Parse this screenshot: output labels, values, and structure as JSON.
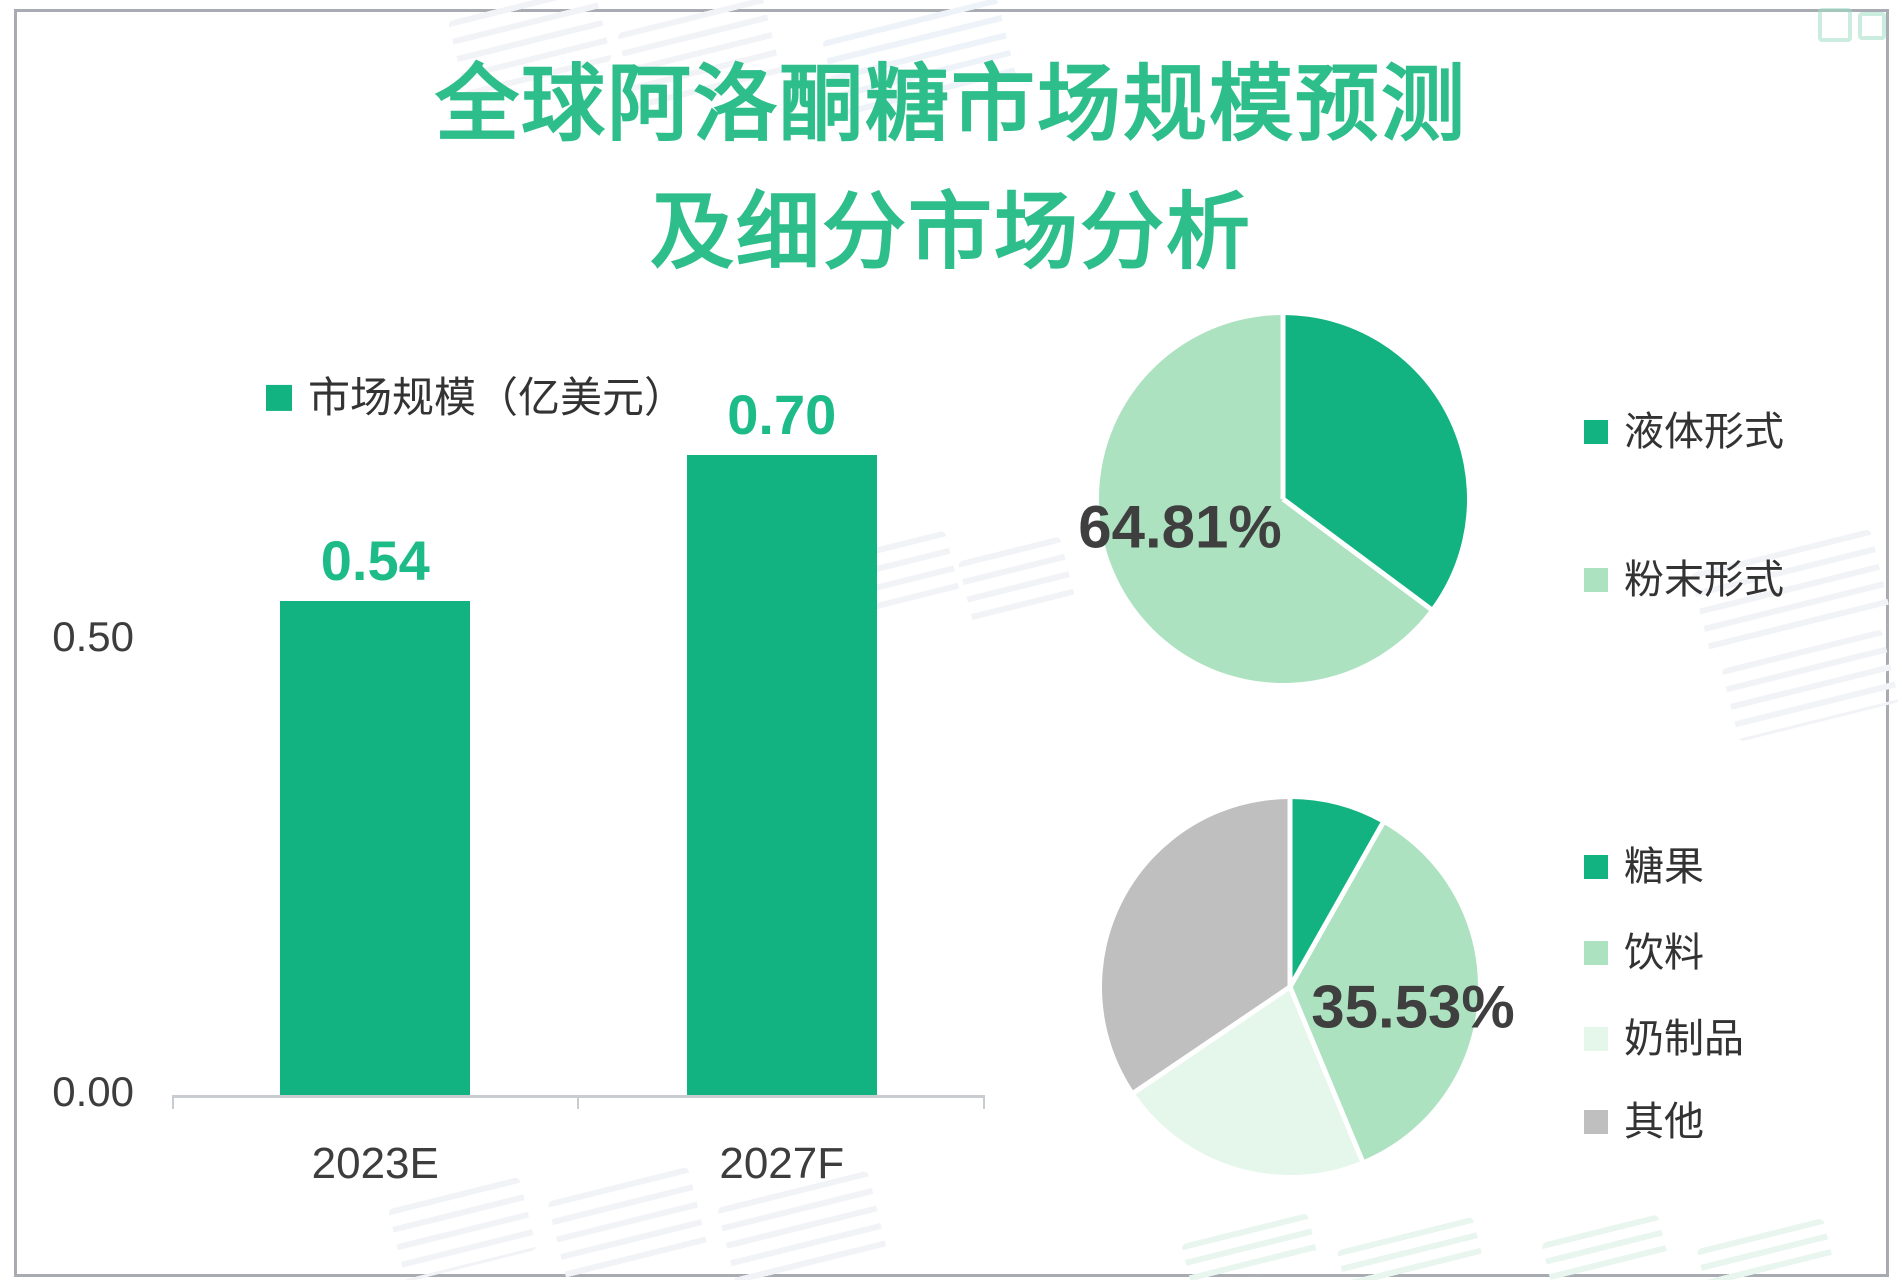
{
  "page": {
    "title": {
      "line1": "全球阿洛酮糖市场规模预测",
      "line2": "及细分市场分析"
    },
    "title_color": "#2ebe8c"
  },
  "chart_data": [
    {
      "type": "bar",
      "legend": [
        "市场规模（亿美元）"
      ],
      "categories": [
        "2023E",
        "2027F"
      ],
      "values": [
        0.54,
        0.7
      ],
      "value_labels": [
        "0.54",
        "0.70"
      ],
      "yticks": [
        {
          "value": 0.0,
          "label": "0.00"
        },
        {
          "value": 0.5,
          "label": "0.50"
        }
      ],
      "ylim": [
        0,
        0.75
      ],
      "grid": false,
      "legend_position": "top-left",
      "bar_color": "#12b380",
      "value_label_color": "#1dbb88",
      "axis_text_color": "#3d3d3d"
    },
    {
      "type": "pie",
      "name": "form-split",
      "start_angle_deg": 0,
      "direction": "clockwise",
      "legend_position": "right",
      "slices": [
        {
          "label": "液体形式",
          "value": 35.19,
          "color": "#12b380"
        },
        {
          "label": "粉末形式",
          "value": 64.81,
          "color": "#ace2c0"
        }
      ],
      "callout": {
        "text": "64.81%",
        "slice": "粉末形式"
      }
    },
    {
      "type": "pie",
      "name": "application-split",
      "start_angle_deg": 0,
      "direction": "clockwise",
      "legend_position": "right",
      "slices": [
        {
          "label": "糖果",
          "value": 8.2,
          "color": "#12b380"
        },
        {
          "label": "饮料",
          "value": 35.53,
          "color": "#ace2c0"
        },
        {
          "label": "奶制品",
          "value": 21.8,
          "color": "#e5f6eb"
        },
        {
          "label": "其他",
          "value": 34.47,
          "color": "#bfbfbf"
        }
      ],
      "callout": {
        "text": "35.53%",
        "slice": "饮料"
      }
    }
  ]
}
